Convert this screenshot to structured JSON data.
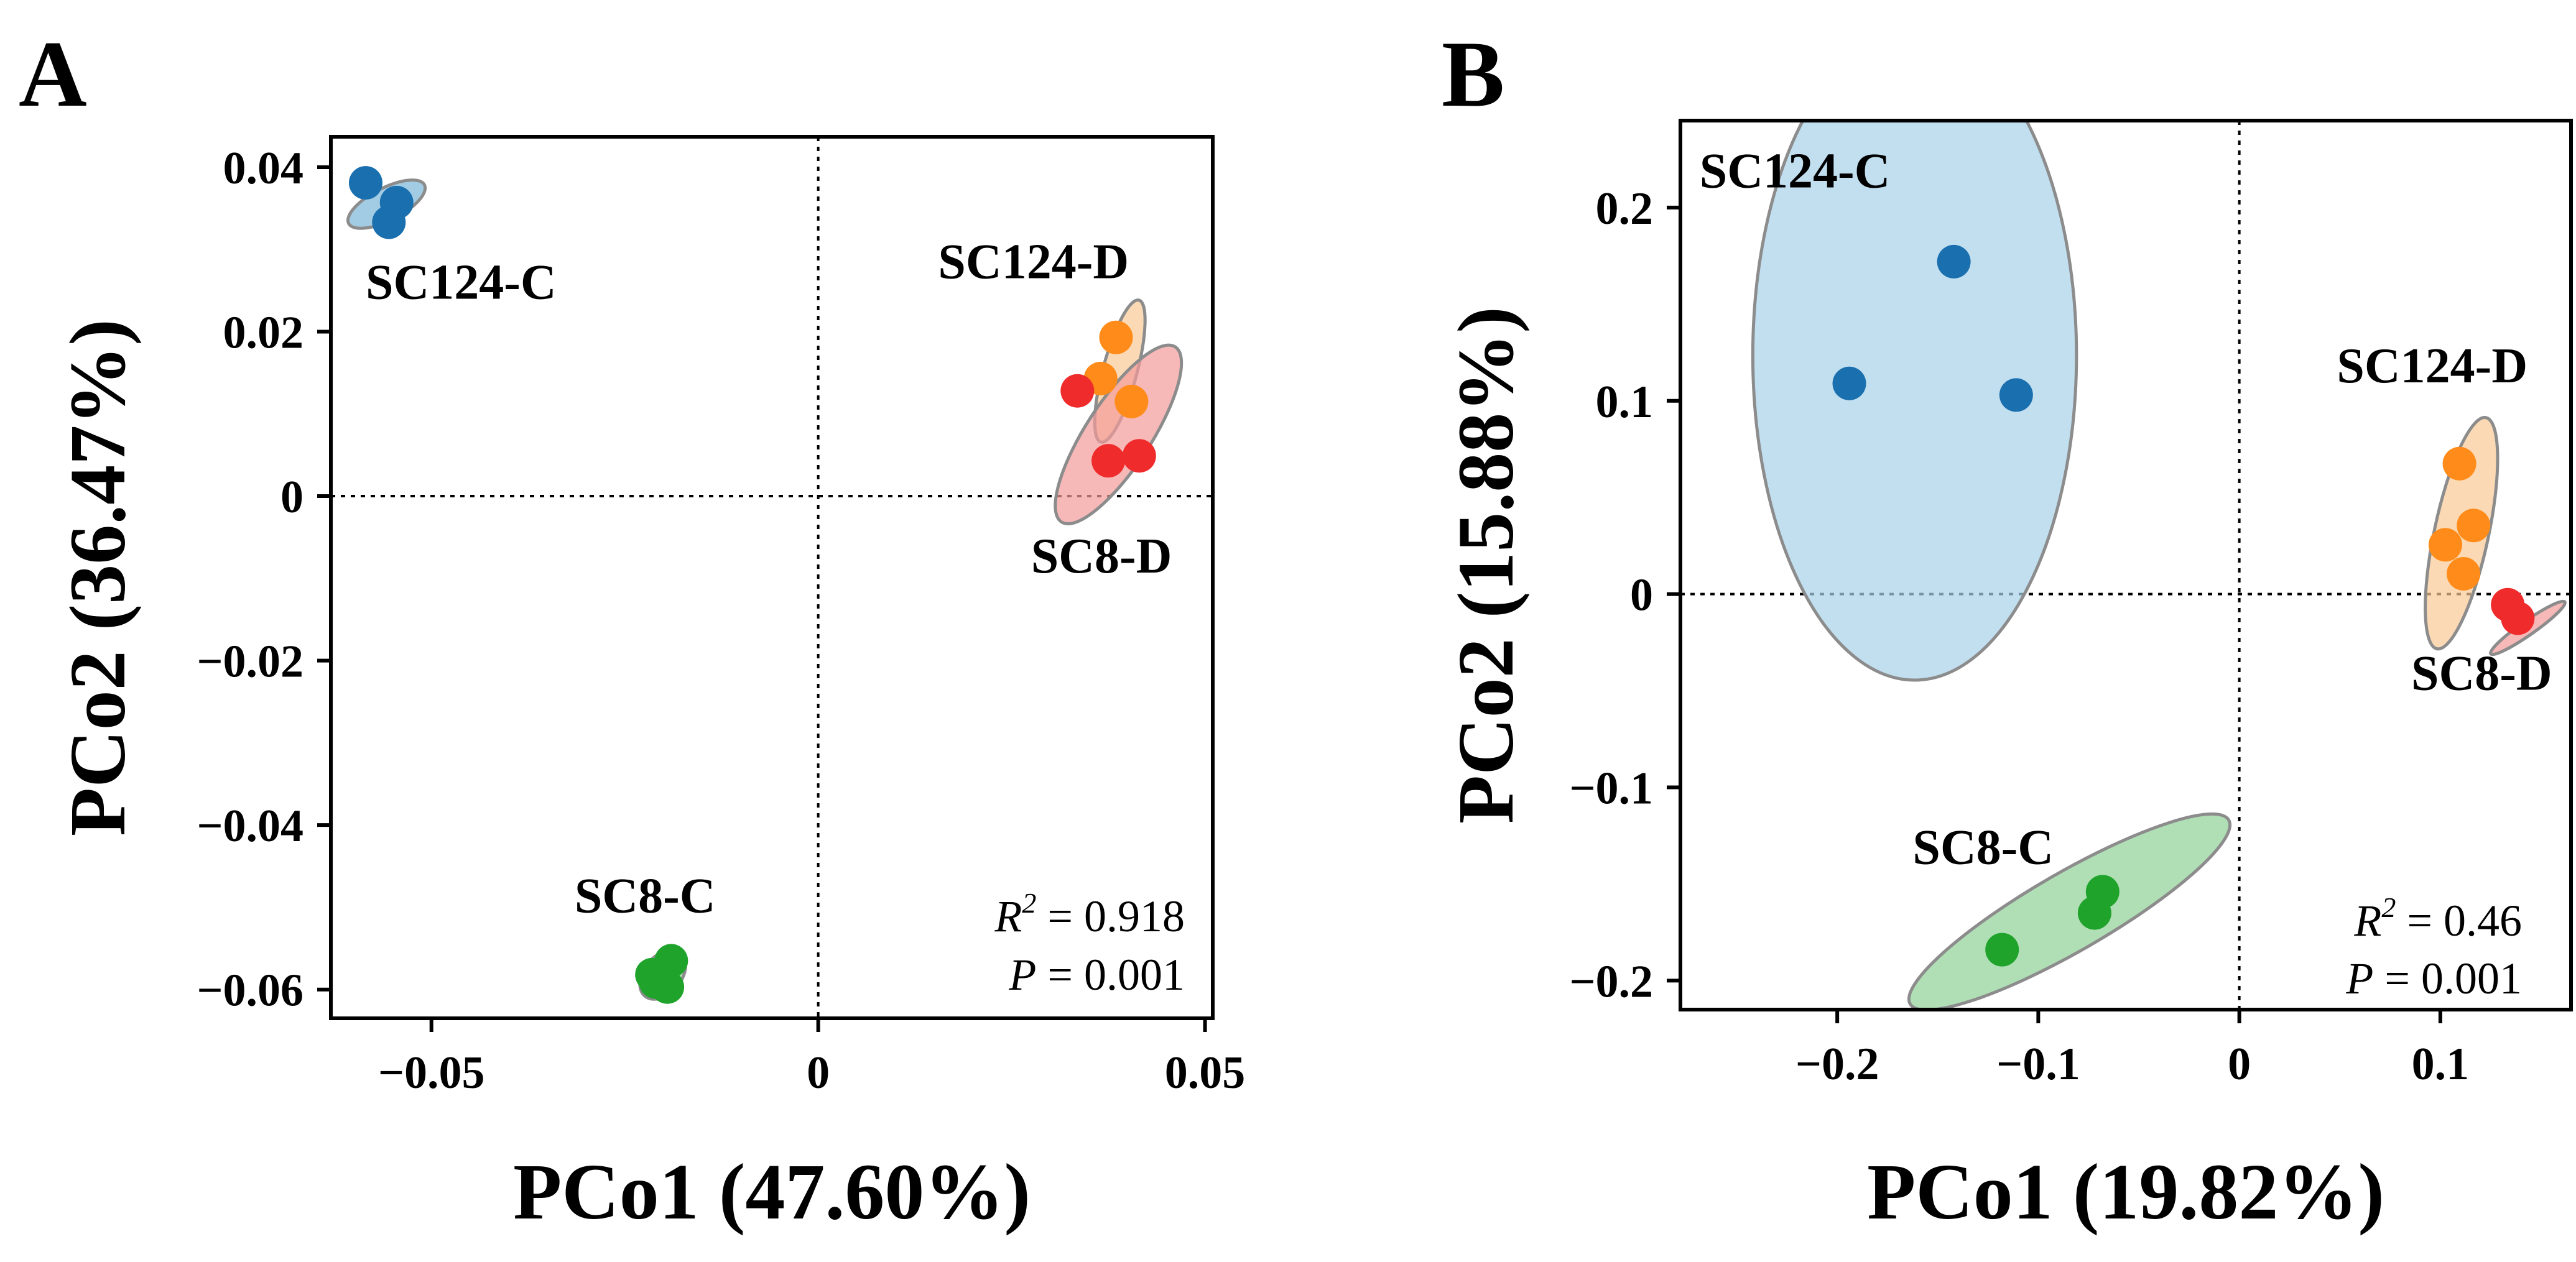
{
  "chart_data": [
    {
      "type": "scatter",
      "panel": "A",
      "xlabel": "PCo1 (47.60%)",
      "ylabel": "PCo2 (36.47%)",
      "xlim": [
        -0.063,
        0.051
      ],
      "ylim": [
        -0.0635,
        0.0437
      ],
      "xticks": [
        -0.05,
        0,
        0.05
      ],
      "xtick_labels": [
        "−0.05",
        "0",
        "0.05"
      ],
      "yticks": [
        0.04,
        0.02,
        0,
        -0.02,
        -0.04,
        -0.06
      ],
      "ytick_labels": [
        "0.04",
        "0.02",
        "0",
        "−0.02",
        "−0.04",
        "−0.06"
      ],
      "reference_lines": {
        "x": 0,
        "y": 0,
        "style": "dotted"
      },
      "stats": {
        "r2_label": "R",
        "r2_sup": "2",
        "r2_value": " = 0.918",
        "p_label": "P",
        "p_value": " = 0.001"
      },
      "series": [
        {
          "name": "SC124-C",
          "color": "#1a6faf",
          "fill": "#7bb6d9",
          "points": [
            [
              -0.0585,
              0.0381
            ],
            [
              -0.0545,
              0.0357
            ],
            [
              -0.0555,
              0.0333
            ]
          ],
          "ellipse": {
            "cx": -0.0558,
            "cy": 0.0355,
            "rx": 0.0055,
            "ry": 0.0021,
            "angle_deg": 27
          },
          "label_pos": [
            -0.0585,
            0.024
          ],
          "label_anchor": "start"
        },
        {
          "name": "SC124-D",
          "color": "#ff8c1a",
          "fill": "#f8c994",
          "points": [
            [
              0.0385,
              0.0193
            ],
            [
              0.0365,
              0.0143
            ],
            [
              0.0405,
              0.0115
            ]
          ],
          "ellipse": {
            "cx": 0.039,
            "cy": 0.0152,
            "rx": 0.0095,
            "ry": 0.0022,
            "angle_deg": 75
          },
          "label_pos": [
            0.0155,
            0.0265
          ],
          "label_anchor": "start"
        },
        {
          "name": "SC8-D",
          "color": "#f02b2b",
          "fill": "#f49a9a",
          "points": [
            [
              0.0335,
              0.0128
            ],
            [
              0.0375,
              0.0043
            ],
            [
              0.0415,
              0.0049
            ]
          ],
          "ellipse": {
            "cx": 0.0388,
            "cy": 0.0075,
            "rx": 0.0135,
            "ry": 0.0042,
            "angle_deg": 57
          },
          "label_pos": [
            0.0275,
            -0.0093
          ],
          "label_anchor": "start"
        },
        {
          "name": "SC8-C",
          "color": "#1fa32b",
          "fill": "#8fd295",
          "points": [
            [
              -0.0215,
              -0.0582
            ],
            [
              -0.019,
              -0.0565
            ],
            [
              -0.0195,
              -0.0597
            ],
            [
              -0.021,
              -0.0591
            ]
          ],
          "ellipse": {
            "cx": -0.0201,
            "cy": -0.0582,
            "rx": 0.0036,
            "ry": 0.0024,
            "angle_deg": 50
          },
          "label_pos": [
            -0.0315,
            -0.0506
          ],
          "label_anchor": "start"
        }
      ]
    },
    {
      "type": "scatter",
      "panel": "B",
      "xlabel": "PCo1 (19.82%)",
      "ylabel": "PCo2 (15.88%)",
      "xlim": [
        -0.278,
        0.165
      ],
      "ylim": [
        -0.215,
        0.245
      ],
      "xticks": [
        -0.2,
        -0.1,
        0,
        0.1
      ],
      "xtick_labels": [
        "−0.2",
        "−0.1",
        "0",
        "0.1"
      ],
      "yticks": [
        0.2,
        0.1,
        0,
        -0.1,
        -0.2
      ],
      "ytick_labels": [
        "0.2",
        "0.1",
        "0",
        "−0.1",
        "−0.2"
      ],
      "reference_lines": {
        "x": 0,
        "y": 0,
        "style": "dotted"
      },
      "stats": {
        "r2_label": "R",
        "r2_sup": "2",
        "r2_value": " = 0.46",
        "p_label": "P",
        "p_value": " = 0.001"
      },
      "series": [
        {
          "name": "SC124-C",
          "color": "#1a6faf",
          "fill": "#a8d1e9",
          "points": [
            [
              -0.194,
              0.109
            ],
            [
              -0.142,
              0.172
            ],
            [
              -0.111,
              0.103
            ]
          ],
          "ellipse": {
            "cx": -0.1615,
            "cy": 0.1235,
            "rx": 0.0805,
            "ry": 0.168,
            "angle_deg": 0
          },
          "label_pos": [
            -0.2685,
            0.2105
          ],
          "label_anchor": "start"
        },
        {
          "name": "SC124-D",
          "color": "#ff8c1a",
          "fill": "#f8c994",
          "points": [
            [
              0.1095,
              0.0675
            ],
            [
              0.1025,
              0.0255
            ],
            [
              0.1165,
              0.0355
            ],
            [
              0.1115,
              0.0105
            ]
          ],
          "ellipse": {
            "cx": 0.1105,
            "cy": 0.0315,
            "rx": 0.0588,
            "ry": 0.0135,
            "angle_deg": 78
          },
          "label_pos": [
            0.0485,
            0.1095
          ],
          "label_anchor": "start"
        },
        {
          "name": "SC8-D",
          "color": "#f02b2b",
          "fill": "#f49a9a",
          "points": [
            [
              0.1335,
              -0.0055
            ],
            [
              0.1385,
              -0.0125
            ]
          ],
          "ellipse": {
            "cx": 0.1435,
            "cy": -0.0175,
            "rx": 0.0225,
            "ry": 0.0035,
            "angle_deg": 35
          },
          "label_pos": [
            0.0855,
            -0.0495
          ],
          "label_anchor": "start"
        },
        {
          "name": "SC8-C",
          "color": "#1fa32b",
          "fill": "#8fd295",
          "points": [
            [
              -0.118,
              -0.184
            ],
            [
              -0.072,
              -0.165
            ],
            [
              -0.068,
              -0.154
            ]
          ],
          "ellipse": {
            "cx": -0.0845,
            "cy": -0.1645,
            "rx": 0.0915,
            "ry": 0.0195,
            "angle_deg": 30
          },
          "label_pos": [
            -0.1625,
            -0.1395
          ],
          "label_anchor": "start"
        }
      ]
    }
  ]
}
